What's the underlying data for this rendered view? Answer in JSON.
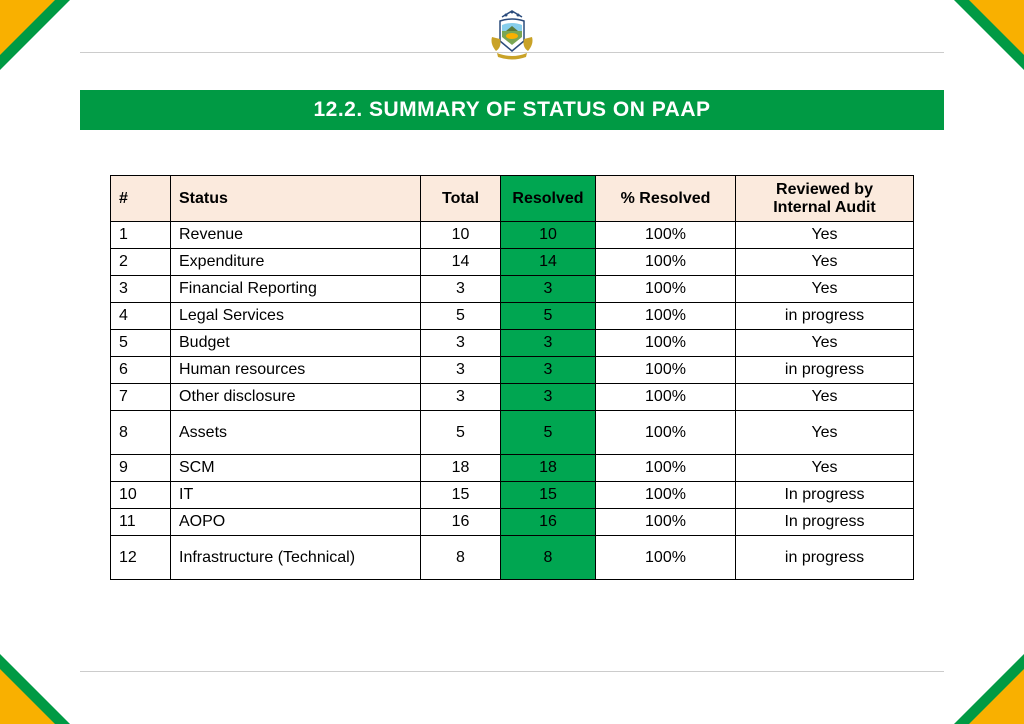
{
  "colors": {
    "green": "#009a44",
    "yellow": "#f9b000",
    "header_bg": "#fbeadd",
    "resolved_col_bg": "#00a651",
    "border": "#000000",
    "rule": "#cccccc",
    "title_text": "#ffffff"
  },
  "title": "12.2. SUMMARY OF STATUS ON PAAP",
  "table": {
    "columns": [
      "#",
      "Status",
      "Total",
      "Resolved",
      "% Resolved",
      "Reviewed by Internal Audit"
    ],
    "rows": [
      {
        "num": "1",
        "status": "Revenue",
        "total": "10",
        "resolved": "10",
        "pct": "100%",
        "review": "Yes",
        "tall": false
      },
      {
        "num": "2",
        "status": "Expenditure",
        "total": "14",
        "resolved": "14",
        "pct": "100%",
        "review": "Yes",
        "tall": false
      },
      {
        "num": "3",
        "status": "Financial Reporting",
        "total": "3",
        "resolved": "3",
        "pct": "100%",
        "review": "Yes",
        "tall": false
      },
      {
        "num": "4",
        "status": "Legal Services",
        "total": "5",
        "resolved": "5",
        "pct": "100%",
        "review": "in progress",
        "tall": false
      },
      {
        "num": "5",
        "status": "Budget",
        "total": "3",
        "resolved": "3",
        "pct": "100%",
        "review": "Yes",
        "tall": false
      },
      {
        "num": "6",
        "status": "Human resources",
        "total": "3",
        "resolved": "3",
        "pct": "100%",
        "review": "in progress",
        "tall": false
      },
      {
        "num": "7",
        "status": "Other disclosure",
        "total": "3",
        "resolved": "3",
        "pct": "100%",
        "review": "Yes",
        "tall": false
      },
      {
        "num": "8",
        "status": "Assets",
        "total": "5",
        "resolved": "5",
        "pct": "100%",
        "review": "Yes",
        "tall": true
      },
      {
        "num": "9",
        "status": "SCM",
        "total": "18",
        "resolved": "18",
        "pct": "100%",
        "review": "Yes",
        "tall": false
      },
      {
        "num": "10",
        "status": "IT",
        "total": "15",
        "resolved": "15",
        "pct": "100%",
        "review": "In progress",
        "tall": false
      },
      {
        "num": "11",
        "status": "AOPO",
        "total": "16",
        "resolved": "16",
        "pct": "100%",
        "review": "In progress",
        "tall": false
      },
      {
        "num": "12",
        "status": "Infrastructure (Technical)",
        "total": "8",
        "resolved": "8",
        "pct": "100%",
        "review": "in progress",
        "tall": true
      }
    ]
  }
}
